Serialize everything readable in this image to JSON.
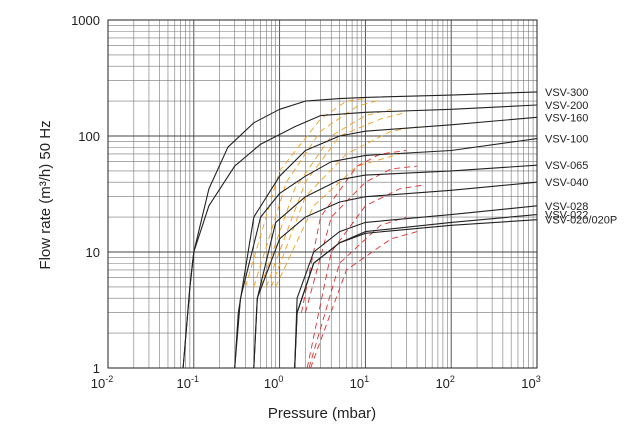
{
  "chart_data": {
    "type": "line",
    "xscale": "log",
    "yscale": "log",
    "xlim": [
      0.01,
      1000
    ],
    "ylim": [
      1,
      1000
    ],
    "xlabel": "Pressure (mbar)",
    "ylabel": "Flow rate (m³/h) 50 Hz",
    "x_tick_labels": [
      "10-2",
      "10-1",
      "100",
      "101",
      "102",
      "103"
    ],
    "y_tick_labels": [
      "1",
      "10",
      "100",
      "1000"
    ],
    "grid": true,
    "series": [
      {
        "name": "VSV-300",
        "color": "#222222",
        "points": [
          [
            0.075,
            1
          ],
          [
            0.09,
            5
          ],
          [
            0.1,
            10
          ],
          [
            0.15,
            35
          ],
          [
            0.25,
            80
          ],
          [
            0.5,
            130
          ],
          [
            1,
            170
          ],
          [
            2,
            200
          ],
          [
            5,
            210
          ],
          [
            10,
            215
          ],
          [
            100,
            225
          ],
          [
            1000,
            240
          ]
        ]
      },
      {
        "name": "VSV-200",
        "color": "#222222",
        "points": [
          [
            0.075,
            1
          ],
          [
            0.09,
            5
          ],
          [
            0.1,
            10
          ],
          [
            0.15,
            25
          ],
          [
            0.3,
            55
          ],
          [
            0.6,
            85
          ],
          [
            1.5,
            120
          ],
          [
            3,
            150
          ],
          [
            10,
            160
          ],
          [
            100,
            170
          ],
          [
            1000,
            185
          ]
        ]
      },
      {
        "name": "VSV-160",
        "color": "#222222",
        "points": [
          [
            0.3,
            1
          ],
          [
            0.33,
            3
          ],
          [
            0.5,
            20
          ],
          [
            1,
            45
          ],
          [
            2,
            75
          ],
          [
            5,
            100
          ],
          [
            10,
            110
          ],
          [
            100,
            125
          ],
          [
            1000,
            145
          ]
        ]
      },
      {
        "name": "VSV-100",
        "color": "#222222",
        "points": [
          [
            0.3,
            1
          ],
          [
            0.35,
            4
          ],
          [
            0.6,
            20
          ],
          [
            1,
            32
          ],
          [
            2,
            45
          ],
          [
            4,
            60
          ],
          [
            10,
            68
          ],
          [
            100,
            75
          ],
          [
            1000,
            95
          ]
        ]
      },
      {
        "name": "VSV-065",
        "color": "#222222",
        "points": [
          [
            0.5,
            1
          ],
          [
            0.55,
            4
          ],
          [
            0.9,
            18
          ],
          [
            2,
            30
          ],
          [
            5,
            42
          ],
          [
            10,
            46
          ],
          [
            100,
            50
          ],
          [
            1000,
            56
          ]
        ]
      },
      {
        "name": "VSV-040",
        "color": "#222222",
        "points": [
          [
            0.5,
            1
          ],
          [
            0.55,
            4
          ],
          [
            1,
            13
          ],
          [
            2,
            20
          ],
          [
            5,
            27
          ],
          [
            10,
            30
          ],
          [
            100,
            34
          ],
          [
            1000,
            40
          ]
        ]
      },
      {
        "name": "VSV-028",
        "color": "#222222",
        "points": [
          [
            1.5,
            1
          ],
          [
            1.6,
            4
          ],
          [
            2.5,
            10
          ],
          [
            5,
            15
          ],
          [
            10,
            18
          ],
          [
            100,
            21
          ],
          [
            1000,
            25
          ]
        ]
      },
      {
        "name": "VSV-022",
        "color": "#222222",
        "points": [
          [
            1.5,
            1
          ],
          [
            1.6,
            3
          ],
          [
            2.5,
            8
          ],
          [
            5,
            12
          ],
          [
            10,
            15
          ],
          [
            100,
            18
          ],
          [
            1000,
            21
          ]
        ]
      },
      {
        "name": "VSV-020/020P",
        "color": "#222222",
        "points": [
          [
            1.5,
            1
          ],
          [
            1.6,
            3
          ],
          [
            2.5,
            8
          ],
          [
            5,
            12
          ],
          [
            10,
            14.5
          ],
          [
            100,
            17
          ],
          [
            1000,
            19
          ]
        ]
      },
      {
        "name": "",
        "color": "#f0a020",
        "dashed": true,
        "points": [
          [
            0.4,
            5
          ],
          [
            1,
            50
          ],
          [
            3,
            140
          ],
          [
            6,
            200
          ],
          [
            10,
            210
          ]
        ]
      },
      {
        "name": "",
        "color": "#f0a020",
        "dashed": true,
        "points": [
          [
            0.5,
            5
          ],
          [
            1.2,
            40
          ],
          [
            3,
            110
          ],
          [
            8,
            180
          ],
          [
            15,
            205
          ]
        ]
      },
      {
        "name": "",
        "color": "#f0a020",
        "dashed": true,
        "points": [
          [
            0.6,
            5
          ],
          [
            1.5,
            35
          ],
          [
            4,
            100
          ],
          [
            10,
            150
          ],
          [
            20,
            170
          ]
        ]
      },
      {
        "name": "",
        "color": "#f0a020",
        "dashed": true,
        "points": [
          [
            0.7,
            5
          ],
          [
            2,
            40
          ],
          [
            5,
            100
          ],
          [
            15,
            140
          ],
          [
            30,
            160
          ]
        ]
      },
      {
        "name": "",
        "color": "#f0a020",
        "dashed": true,
        "points": [
          [
            0.8,
            5
          ],
          [
            2,
            30
          ],
          [
            6,
            70
          ],
          [
            20,
            110
          ],
          [
            40,
            120
          ]
        ]
      },
      {
        "name": "",
        "color": "#f0a020",
        "dashed": true,
        "points": [
          [
            0.9,
            5
          ],
          [
            2.5,
            25
          ],
          [
            8,
            55
          ],
          [
            25,
            70
          ]
        ]
      },
      {
        "name": "",
        "color": "#e03030",
        "dashed": true,
        "points": [
          [
            1.8,
            3
          ],
          [
            3,
            20
          ],
          [
            8,
            55
          ],
          [
            15,
            70
          ],
          [
            30,
            75
          ]
        ]
      },
      {
        "name": "",
        "color": "#e03030",
        "dashed": true,
        "points": [
          [
            2,
            3
          ],
          [
            4,
            20
          ],
          [
            10,
            40
          ],
          [
            20,
            52
          ],
          [
            40,
            55
          ]
        ]
      },
      {
        "name": "",
        "color": "#e03030",
        "dashed": true,
        "points": [
          [
            2.1,
            1
          ],
          [
            4,
            10
          ],
          [
            10,
            25
          ],
          [
            25,
            35
          ],
          [
            50,
            38
          ]
        ]
      },
      {
        "name": "",
        "color": "#e03030",
        "dashed": true,
        "points": [
          [
            2.2,
            1
          ],
          [
            5,
            8
          ],
          [
            15,
            17
          ],
          [
            30,
            20
          ]
        ]
      },
      {
        "name": "",
        "color": "#e03030",
        "dashed": true,
        "points": [
          [
            2.3,
            1
          ],
          [
            6,
            7
          ],
          [
            20,
            13
          ],
          [
            40,
            15
          ]
        ]
      }
    ]
  }
}
